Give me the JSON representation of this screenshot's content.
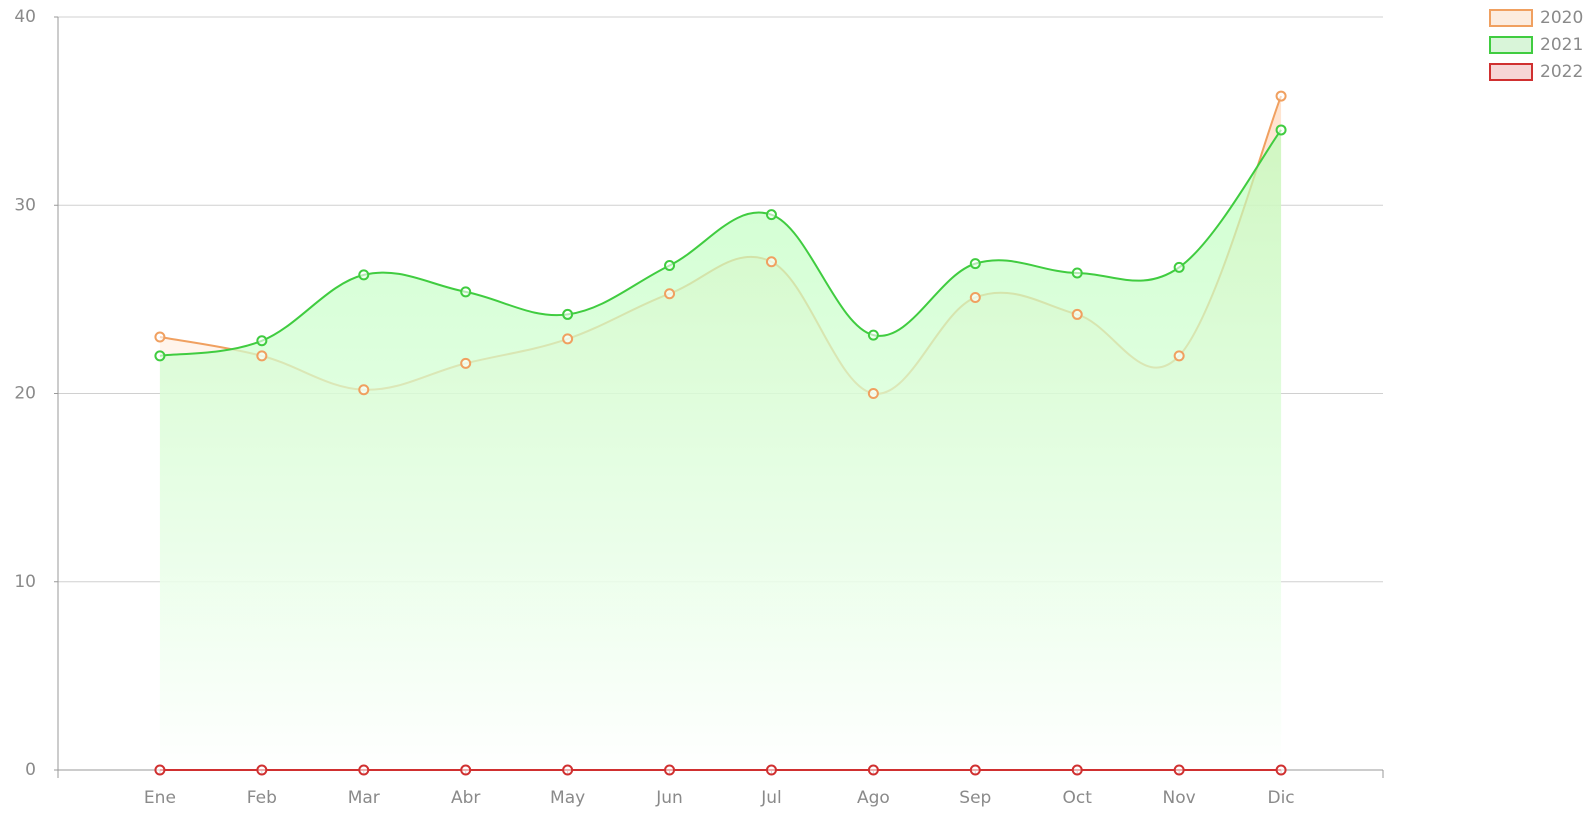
{
  "chart_data": {
    "type": "line",
    "categories": [
      "Ene",
      "Feb",
      "Mar",
      "Abr",
      "May",
      "Jun",
      "Jul",
      "Ago",
      "Sep",
      "Oct",
      "Nov",
      "Dic"
    ],
    "series": [
      {
        "name": "2020",
        "color": "#f0a060",
        "values": [
          23,
          22,
          20.2,
          21.6,
          22.9,
          25.3,
          27,
          20,
          25.1,
          24.2,
          22,
          35.8
        ]
      },
      {
        "name": "2021",
        "color": "#40cc40",
        "values": [
          22,
          22.8,
          26.3,
          25.4,
          24.2,
          26.8,
          29.5,
          23.1,
          26.9,
          26.4,
          26.7,
          34
        ]
      },
      {
        "name": "2022",
        "color": "#d03030",
        "values": [
          0,
          0,
          0,
          0,
          0,
          0,
          0,
          0,
          0,
          0,
          0,
          0
        ]
      }
    ],
    "ylim": [
      0,
      40
    ],
    "yticks": [
      0,
      10,
      20,
      30,
      40
    ],
    "grid": true,
    "legend": "top-right"
  }
}
